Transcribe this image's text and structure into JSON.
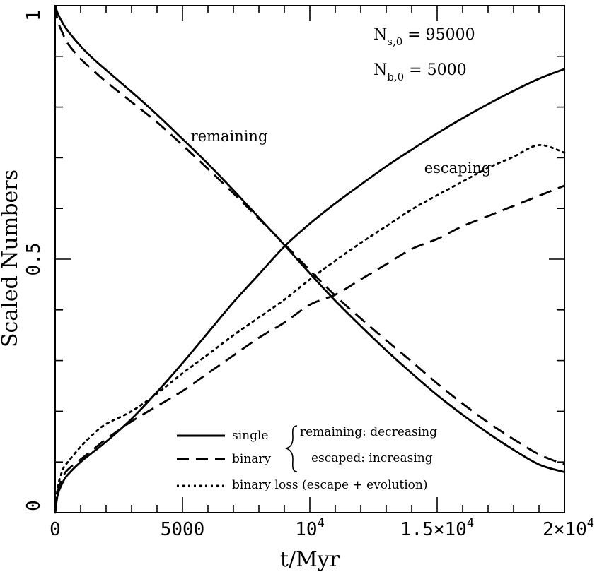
{
  "chart_data": {
    "type": "line",
    "xlabel": "t/Myr",
    "ylabel": "Scaled Numbers",
    "xlim": [
      0,
      20000
    ],
    "ylim": [
      0,
      1
    ],
    "x_ticks": [
      {
        "value": 0,
        "label": "0"
      },
      {
        "value": 5000,
        "label": "5000"
      },
      {
        "value": 10000,
        "label": "10^4"
      },
      {
        "value": 15000,
        "label": "1.5×10^4"
      },
      {
        "value": 20000,
        "label": "2×10^4"
      }
    ],
    "y_ticks": [
      {
        "value": 0,
        "label": "0"
      },
      {
        "value": 0.5,
        "label": "0.5"
      },
      {
        "value": 1,
        "label": "1"
      }
    ],
    "annotations": {
      "ns0": "N_{s,0} = 95000",
      "nb0": "N_{b,0} = 5000",
      "remaining": "remaining",
      "escaping": "escaping"
    },
    "legend": {
      "placement": "bottom-center",
      "single": "single",
      "binary": "binary",
      "binary_loss": "binary loss (escape + evolution)",
      "remaining_desc": "remaining: decreasing",
      "escaped_desc": "escaped: increasing"
    },
    "series": [
      {
        "style": "solid",
        "x": [
          0,
          100,
          300,
          500,
          1000,
          1500,
          2000,
          3000,
          4000,
          5000,
          6000,
          7000,
          8000,
          9000,
          10000,
          11000,
          12000,
          13000,
          14000,
          15000,
          16000,
          17000,
          18000,
          19000,
          20000
        ],
        "values": [
          1.0,
          0.985,
          0.965,
          0.95,
          0.92,
          0.895,
          0.873,
          0.83,
          0.785,
          0.737,
          0.688,
          0.636,
          0.582,
          0.528,
          0.472,
          0.418,
          0.368,
          0.32,
          0.275,
          0.232,
          0.193,
          0.157,
          0.124,
          0.095,
          0.08
        ]
      },
      {
        "style": "dashed",
        "x": [
          0,
          100,
          300,
          500,
          1000,
          1500,
          2000,
          3000,
          4000,
          5000,
          6000,
          7000,
          8000,
          9000,
          10000,
          11000,
          12000,
          13000,
          14000,
          15000,
          16000,
          17000,
          18000,
          19000,
          20000
        ],
        "values": [
          1.0,
          0.97,
          0.945,
          0.925,
          0.895,
          0.872,
          0.85,
          0.81,
          0.77,
          0.725,
          0.678,
          0.63,
          0.58,
          0.53,
          0.478,
          0.428,
          0.383,
          0.34,
          0.298,
          0.255,
          0.215,
          0.178,
          0.145,
          0.115,
          0.095
        ]
      },
      {
        "style": "solid",
        "x": [
          0,
          100,
          300,
          500,
          1000,
          1500,
          2000,
          3000,
          4000,
          5000,
          6000,
          7000,
          8000,
          9000,
          10000,
          11000,
          12000,
          13000,
          14000,
          15000,
          16000,
          17000,
          18000,
          19000,
          20000
        ],
        "values": [
          0.0,
          0.035,
          0.06,
          0.075,
          0.1,
          0.12,
          0.14,
          0.185,
          0.238,
          0.295,
          0.355,
          0.415,
          0.47,
          0.525,
          0.57,
          0.61,
          0.647,
          0.683,
          0.716,
          0.748,
          0.778,
          0.806,
          0.832,
          0.856,
          0.875
        ]
      },
      {
        "style": "dashed",
        "x": [
          0,
          100,
          300,
          500,
          1000,
          1500,
          2000,
          3000,
          4000,
          5000,
          6000,
          7000,
          8000,
          9000,
          10000,
          11000,
          12000,
          13000,
          14000,
          15000,
          16000,
          17000,
          18000,
          19000,
          20000
        ],
        "values": [
          0.0,
          0.04,
          0.07,
          0.085,
          0.105,
          0.125,
          0.145,
          0.18,
          0.21,
          0.24,
          0.275,
          0.31,
          0.345,
          0.375,
          0.41,
          0.43,
          0.46,
          0.49,
          0.52,
          0.54,
          0.565,
          0.585,
          0.605,
          0.625,
          0.645
        ]
      },
      {
        "style": "dotted",
        "x": [
          0,
          100,
          300,
          500,
          1000,
          1500,
          2000,
          3000,
          4000,
          5000,
          6000,
          7000,
          8000,
          9000,
          10000,
          11000,
          12000,
          13000,
          14000,
          15000,
          16000,
          17000,
          18000,
          19000,
          20000
        ],
        "values": [
          0.0,
          0.05,
          0.085,
          0.1,
          0.13,
          0.155,
          0.175,
          0.2,
          0.235,
          0.275,
          0.312,
          0.35,
          0.385,
          0.42,
          0.46,
          0.497,
          0.532,
          0.565,
          0.598,
          0.626,
          0.653,
          0.68,
          0.702,
          0.725,
          0.71
        ]
      }
    ]
  }
}
